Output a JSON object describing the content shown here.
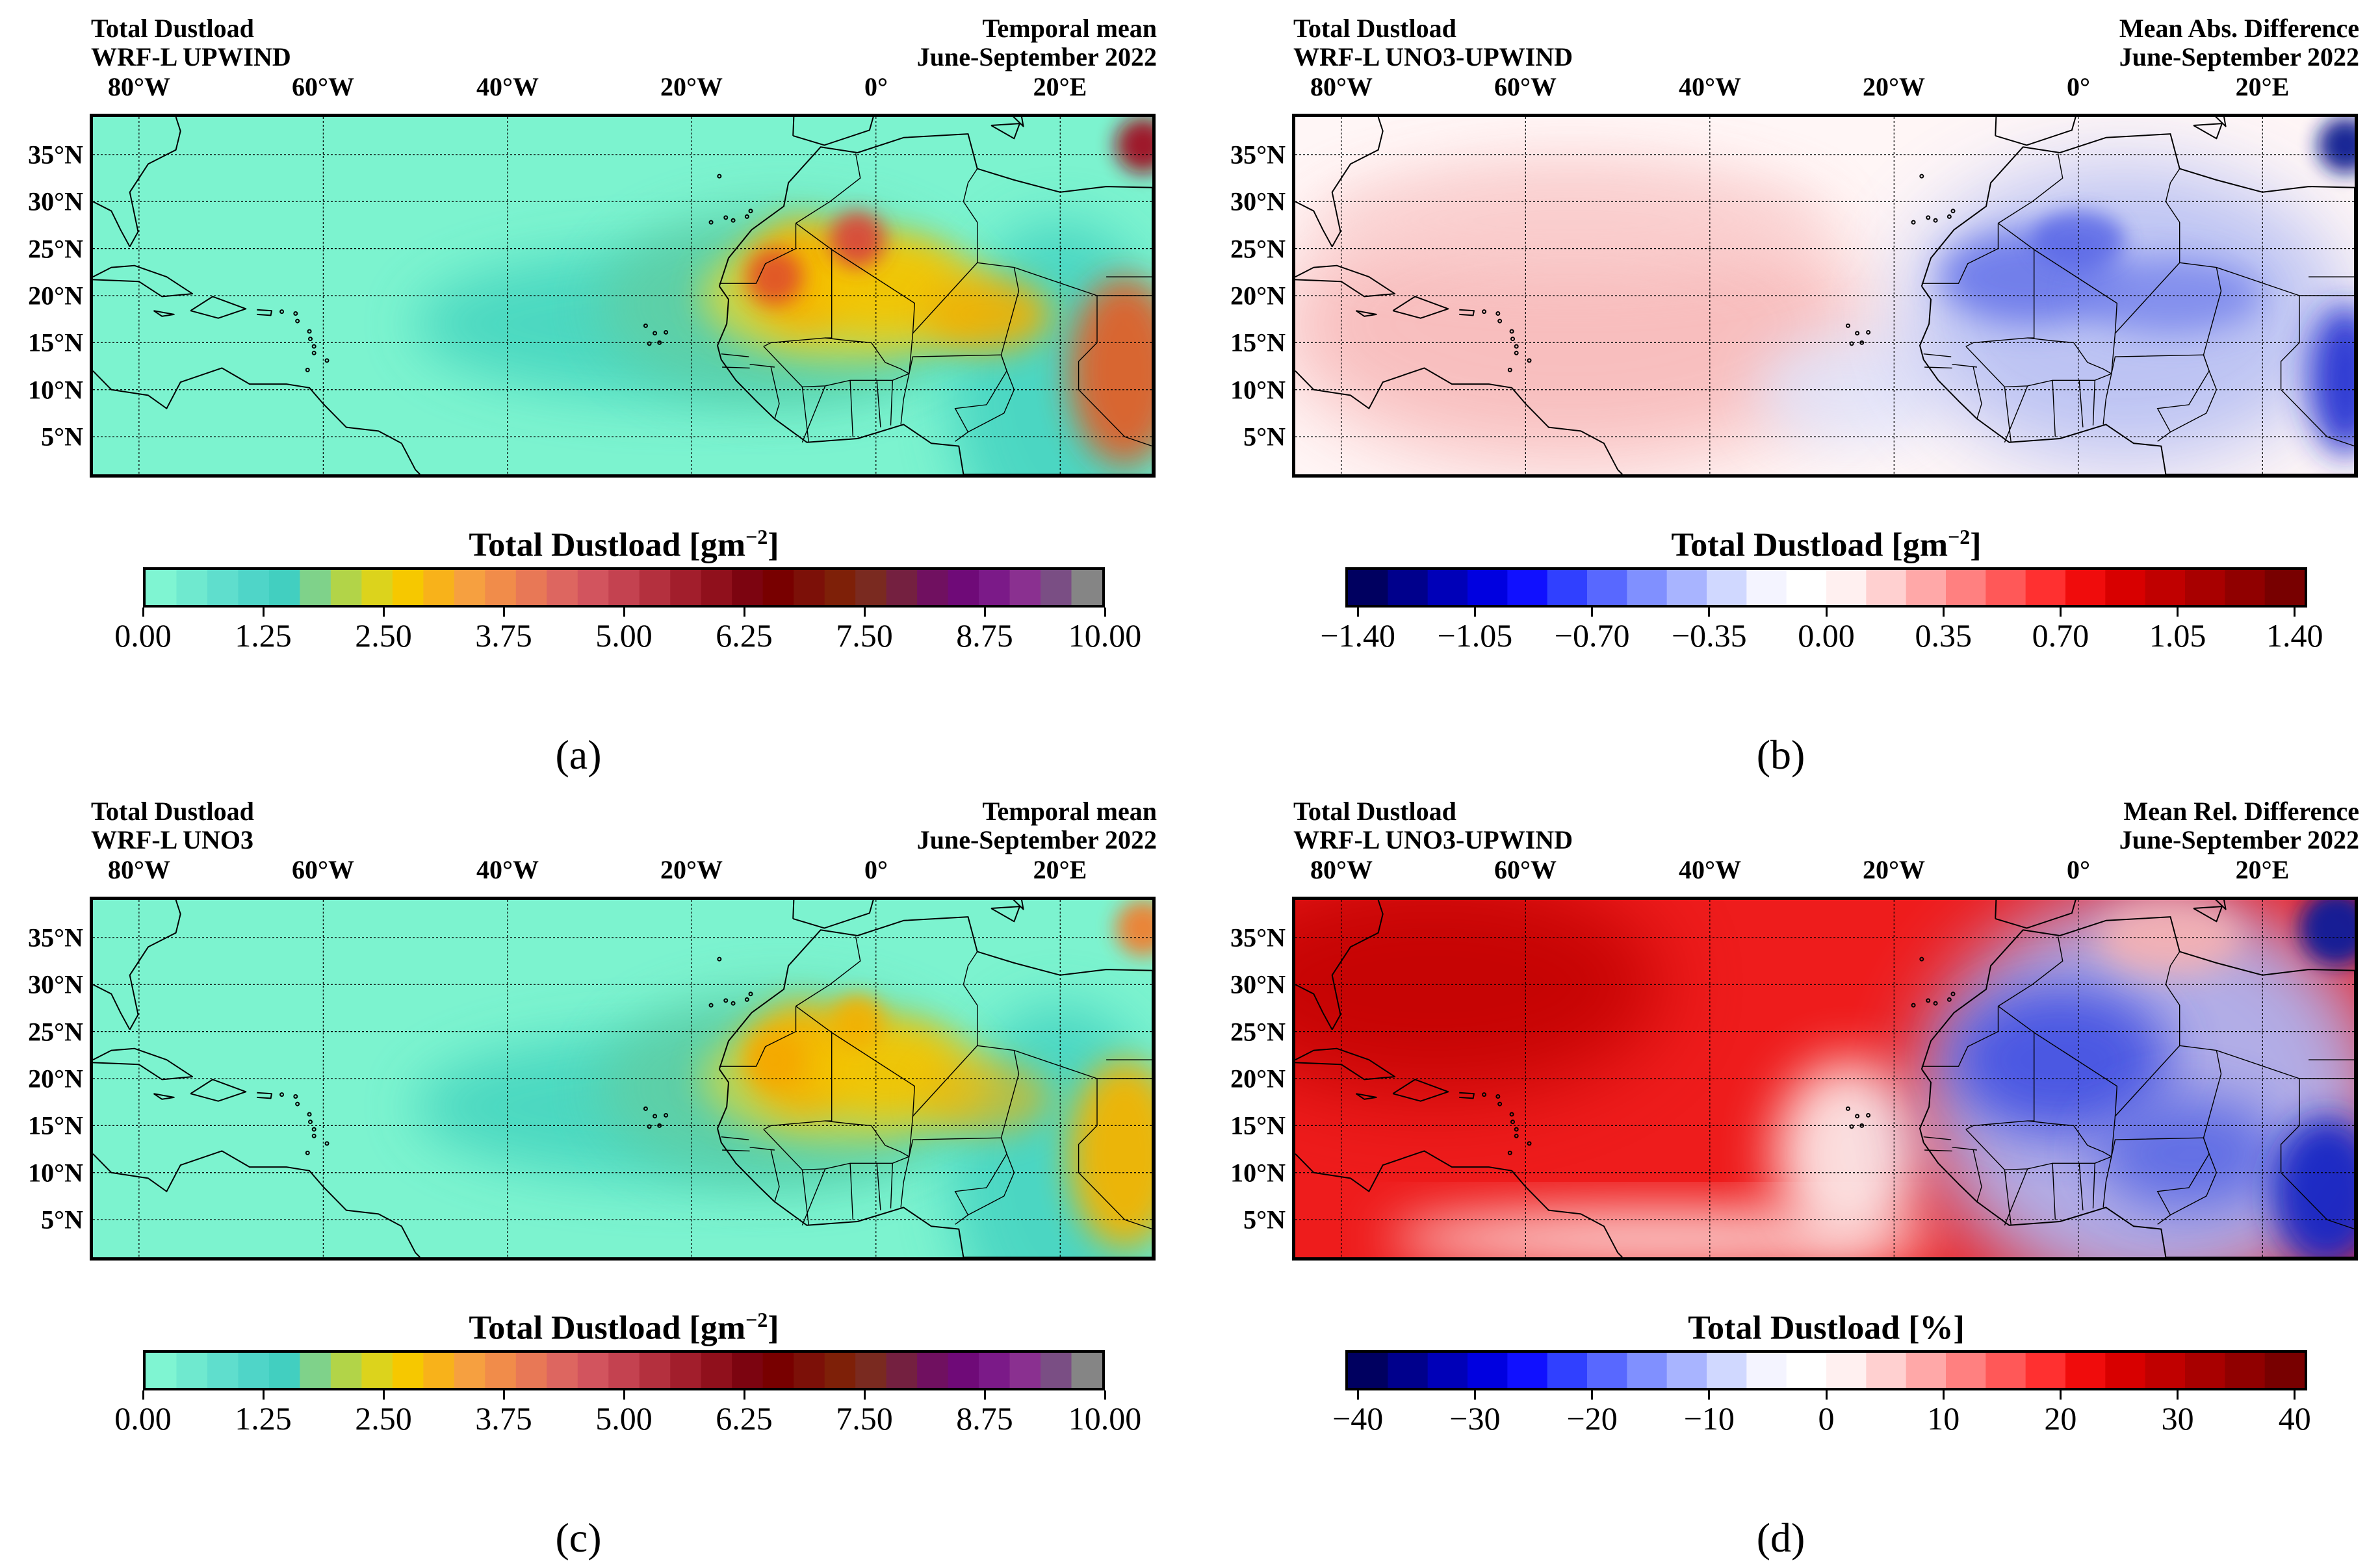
{
  "panels": [
    {
      "id": "a",
      "title_left": [
        "Total Dustload",
        "WRF-L UPWIND"
      ],
      "title_right": [
        "Temporal mean",
        "June-September 2022"
      ],
      "lon_labels": [
        "80°W",
        "60°W",
        "40°W",
        "20°W",
        "0°",
        "20°E"
      ],
      "lat_labels": [
        "35°N",
        "30°N",
        "25°N",
        "20°N",
        "15°N",
        "10°N",
        "5°N"
      ],
      "colorbar_label": "Total Dustload [gm",
      "colorbar_unit_sup": "−2",
      "colorbar_unit_close": "]",
      "colorbar_ticks": [
        "0.00",
        "1.25",
        "2.50",
        "3.75",
        "5.00",
        "6.25",
        "7.50",
        "8.75",
        "10.00"
      ],
      "caption": "(a)"
    },
    {
      "id": "b",
      "title_left": [
        "Total Dustload",
        "WRF-L UNO3-UPWIND"
      ],
      "title_right": [
        "Mean Abs. Difference",
        "June-September 2022"
      ],
      "lon_labels": [
        "80°W",
        "60°W",
        "40°W",
        "20°W",
        "0°",
        "20°E"
      ],
      "lat_labels": [
        "35°N",
        "30°N",
        "25°N",
        "20°N",
        "15°N",
        "10°N",
        "5°N"
      ],
      "colorbar_label": "Total Dustload [gm",
      "colorbar_unit_sup": "−2",
      "colorbar_unit_close": "]",
      "colorbar_ticks": [
        "−1.40",
        "−1.05",
        "−0.70",
        "−0.35",
        "0.00",
        "0.35",
        "0.70",
        "1.05",
        "1.40"
      ],
      "caption": "(b)"
    },
    {
      "id": "c",
      "title_left": [
        "Total Dustload",
        "WRF-L UNO3"
      ],
      "title_right": [
        "Temporal mean",
        "June-September 2022"
      ],
      "lon_labels": [
        "80°W",
        "60°W",
        "40°W",
        "20°W",
        "0°",
        "20°E"
      ],
      "lat_labels": [
        "35°N",
        "30°N",
        "25°N",
        "20°N",
        "15°N",
        "10°N",
        "5°N"
      ],
      "colorbar_label": "Total Dustload [gm",
      "colorbar_unit_sup": "−2",
      "colorbar_unit_close": "]",
      "colorbar_ticks": [
        "0.00",
        "1.25",
        "2.50",
        "3.75",
        "5.00",
        "6.25",
        "7.50",
        "8.75",
        "10.00"
      ],
      "caption": "(c)"
    },
    {
      "id": "d",
      "title_left": [
        "Total Dustload",
        "WRF-L UNO3-UPWIND"
      ],
      "title_right": [
        "Mean Rel. Difference",
        "June-September 2022"
      ],
      "lon_labels": [
        "80°W",
        "60°W",
        "40°W",
        "20°W",
        "0°",
        "20°E"
      ],
      "lat_labels": [
        "35°N",
        "30°N",
        "25°N",
        "20°N",
        "15°N",
        "10°N",
        "5°N"
      ],
      "colorbar_label": "Total Dustload [%]",
      "colorbar_unit_sup": "",
      "colorbar_unit_close": "",
      "colorbar_ticks": [
        "−40",
        "−30",
        "−20",
        "−10",
        "0",
        "10",
        "20",
        "30",
        "40"
      ],
      "caption": "(d)"
    }
  ],
  "colors": {
    "dust_low": "#7ff5d2",
    "dust_mid": "#f5c800",
    "dust_high": "#7a0000",
    "diff_neg": "#000066",
    "diff_zero": "#ffffff",
    "diff_pos": "#7a0000"
  }
}
